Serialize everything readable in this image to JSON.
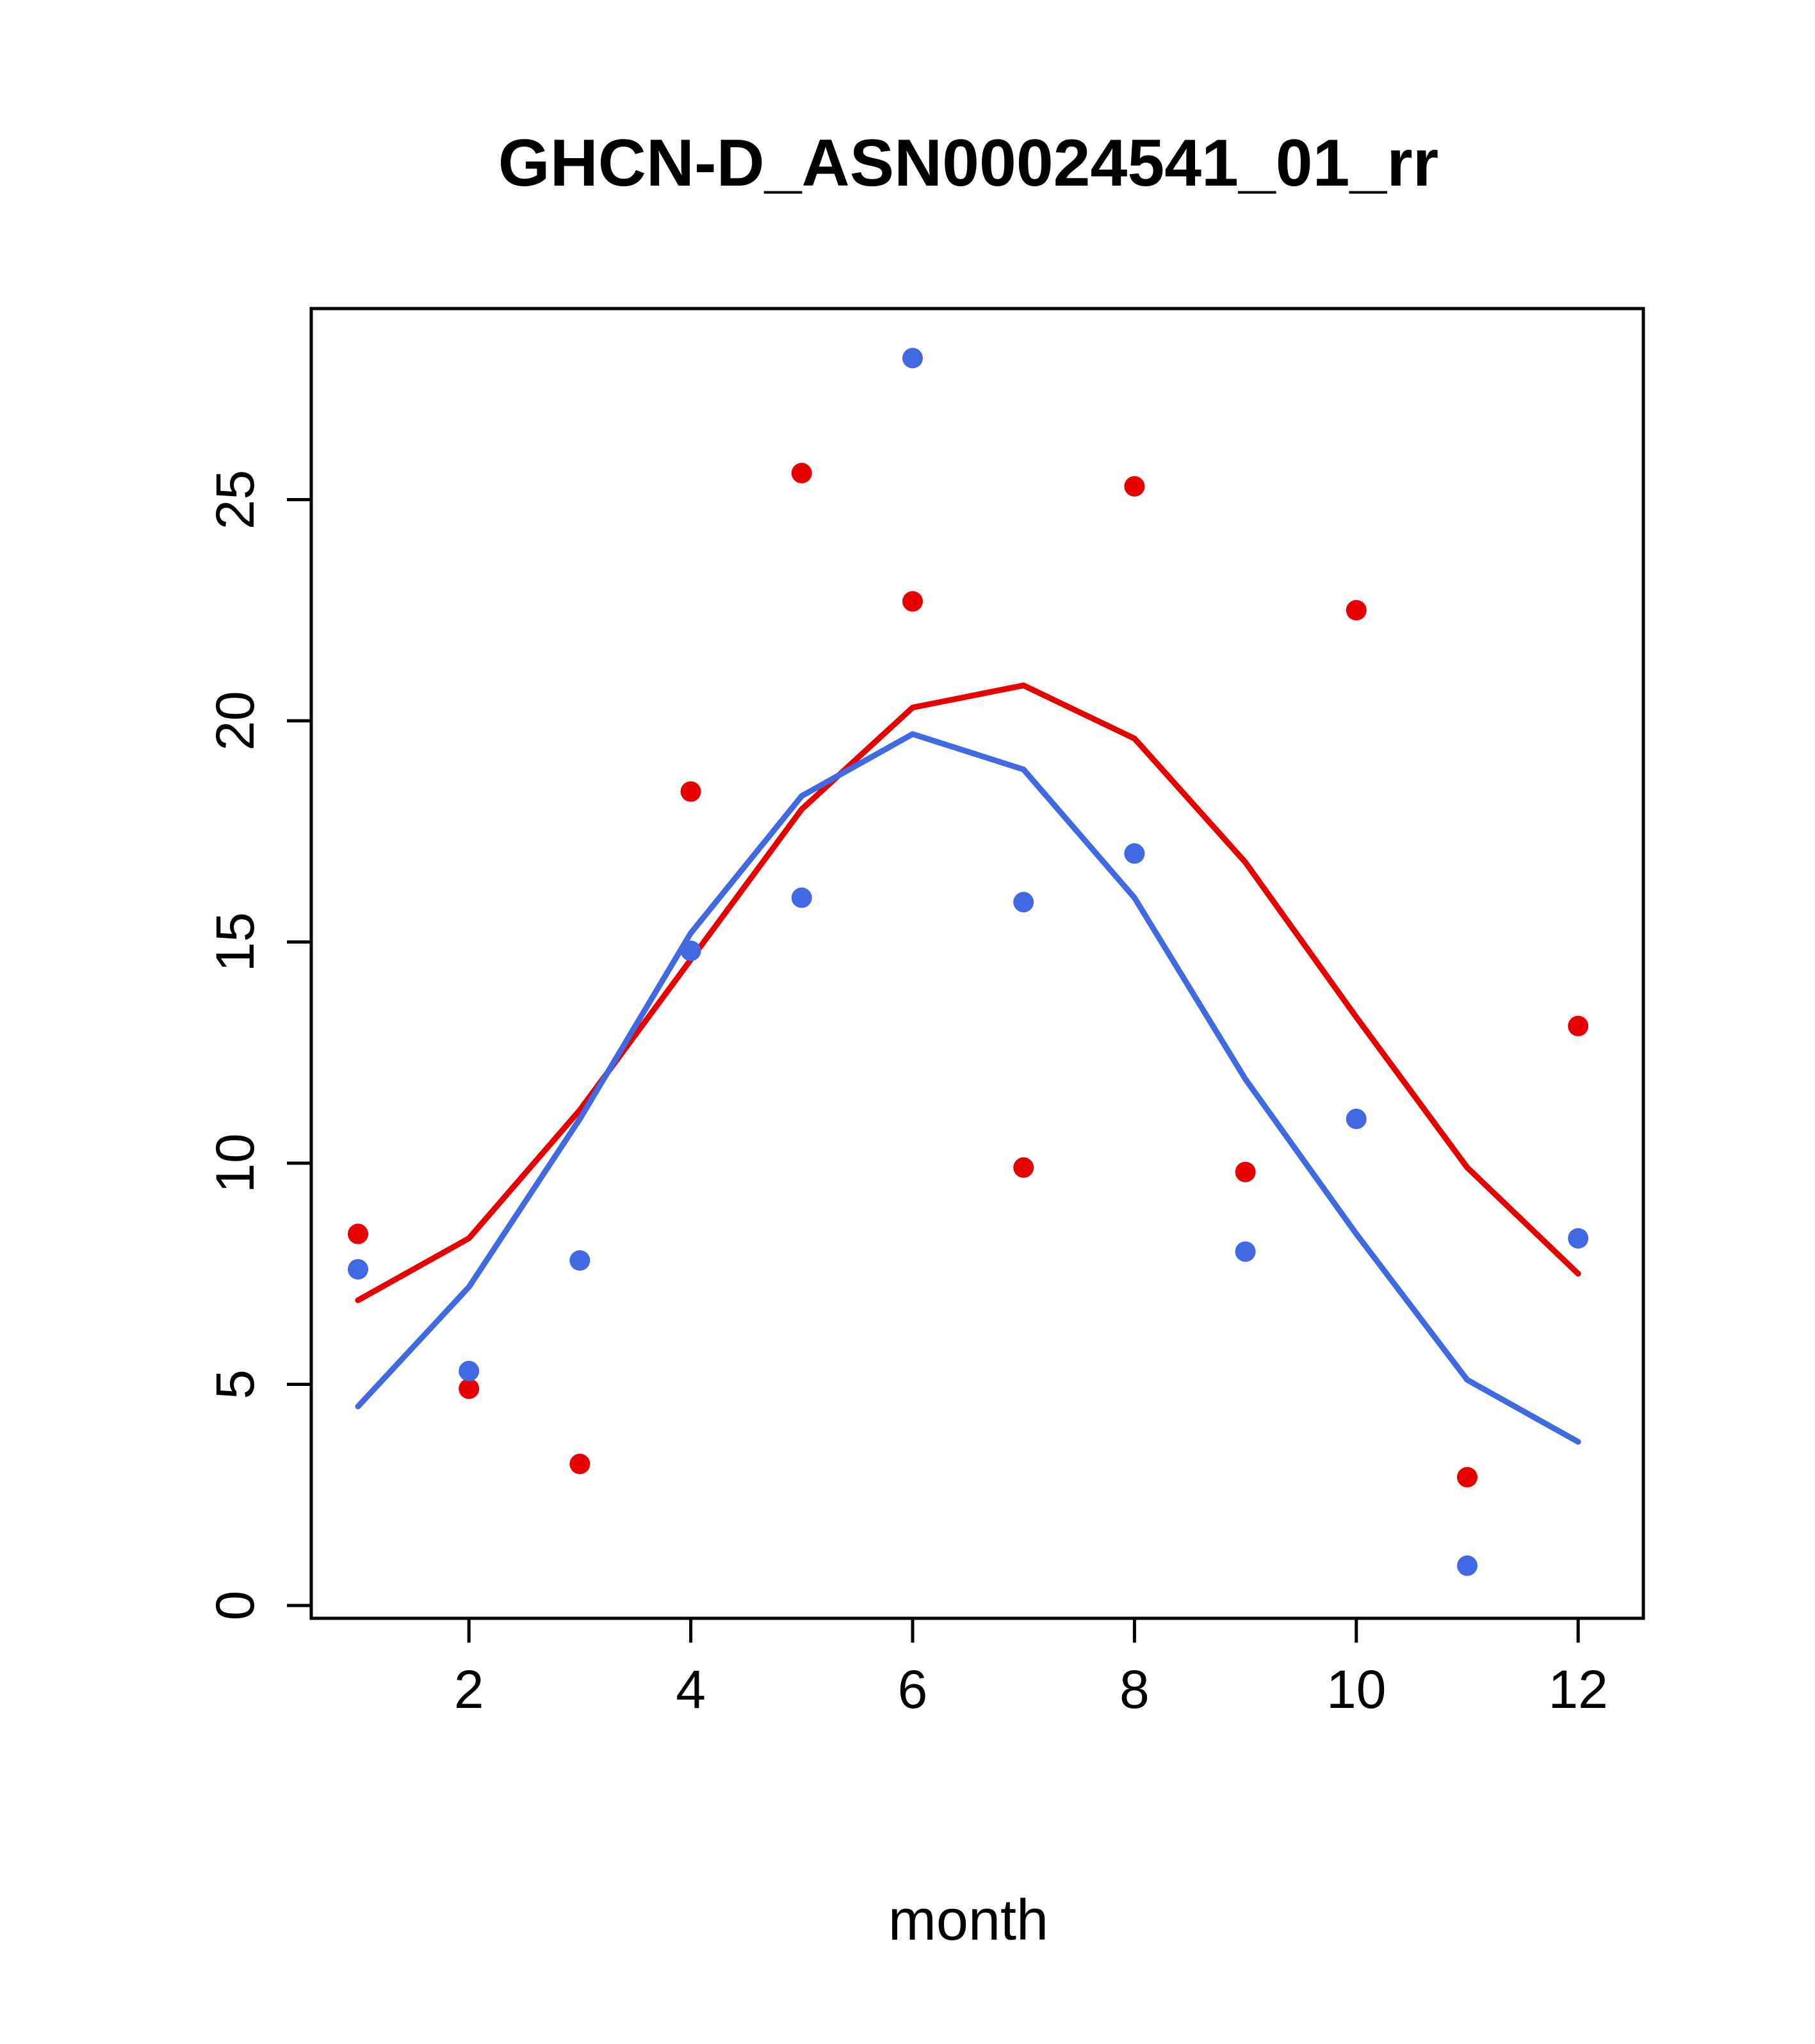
{
  "title": "GHCN-D_ASN00024541_01_rr",
  "chart_data": {
    "type": "scatter",
    "title": "GHCN-D_ASN00024541_01_rr",
    "xlabel": "month",
    "ylabel": "",
    "x": [
      1,
      2,
      3,
      4,
      5,
      6,
      7,
      8,
      9,
      10,
      11,
      12
    ],
    "xticks": [
      2,
      4,
      6,
      8,
      10,
      12
    ],
    "yticks": [
      0,
      5,
      10,
      15,
      20,
      25
    ],
    "xlim": [
      0.56,
      12.6
    ],
    "ylim": [
      -0.3,
      29.3
    ],
    "grid": false,
    "legend": "none",
    "colors": {
      "red": "#e60000",
      "blue": "#4169e1",
      "axis": "#000000"
    },
    "series": [
      {
        "name": "red-points",
        "kind": "scatter",
        "color": "#e60000",
        "values": [
          8.4,
          4.9,
          3.2,
          18.4,
          25.6,
          22.7,
          9.9,
          25.3,
          9.8,
          22.5,
          2.9,
          13.1
        ]
      },
      {
        "name": "blue-points",
        "kind": "scatter",
        "color": "#4169e1",
        "values": [
          7.6,
          5.3,
          7.8,
          14.8,
          16.0,
          28.2,
          15.9,
          17.0,
          8.0,
          11.0,
          0.9,
          8.3
        ]
      },
      {
        "name": "red-smooth-line",
        "kind": "line",
        "color": "#e60000",
        "values": [
          6.9,
          8.3,
          11.2,
          14.6,
          18.0,
          20.3,
          20.8,
          19.6,
          16.8,
          13.3,
          9.9,
          7.5
        ]
      },
      {
        "name": "blue-smooth-line",
        "kind": "line",
        "color": "#4169e1",
        "values": [
          4.5,
          7.2,
          11.0,
          15.2,
          18.3,
          19.7,
          18.9,
          16.0,
          11.9,
          8.4,
          5.1,
          3.7
        ]
      }
    ]
  }
}
